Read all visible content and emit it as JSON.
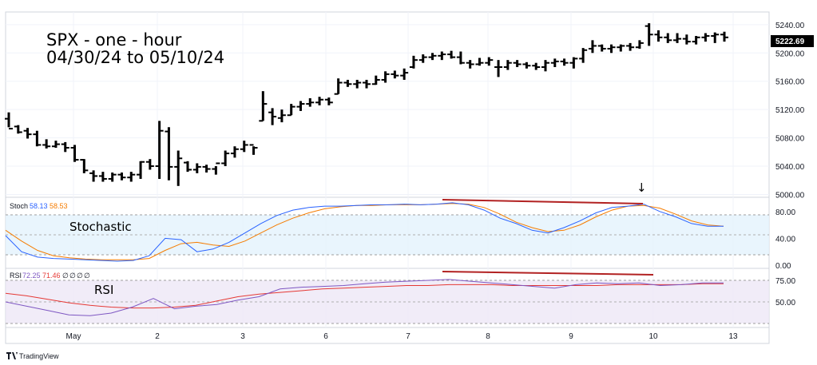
{
  "chart_data": {
    "type": "bar",
    "title_line1": "SPX - one - hour",
    "title_line2": "04/30/24 to 05/10/24",
    "last_price": "5222.69",
    "brand": "TradingView",
    "price_axis": {
      "min": 4996,
      "max": 5250,
      "ticks": [
        "5240.00",
        "5200.00",
        "5160.00",
        "5120.00",
        "5080.00",
        "5040.00",
        "5000.00"
      ]
    },
    "x_labels": [
      "May",
      "2",
      "3",
      "6",
      "7",
      "8",
      "9",
      "10",
      "13"
    ],
    "price_bars": [
      [
        5116,
        5095,
        5107,
        5093
      ],
      [
        5098,
        5086,
        5096,
        5088
      ],
      [
        5094,
        5079,
        5090,
        5085
      ],
      [
        5090,
        5068,
        5085,
        5070
      ],
      [
        5078,
        5065,
        5070,
        5068
      ],
      [
        5076,
        5066,
        5068,
        5071
      ],
      [
        5074,
        5060,
        5071,
        5066
      ],
      [
        5070,
        5046,
        5066,
        5049
      ],
      [
        5050,
        5030,
        5049,
        5034
      ],
      [
        5034,
        5018,
        5030,
        5026
      ],
      [
        5032,
        5018,
        5026,
        5022
      ],
      [
        5031,
        5018,
        5022,
        5028
      ],
      [
        5031,
        5020,
        5028,
        5024
      ],
      [
        5032,
        5018,
        5024,
        5028
      ],
      [
        5047,
        5022,
        5028,
        5046
      ],
      [
        5050,
        5035,
        5046,
        5040
      ],
      [
        5104,
        5022,
        5040,
        5090
      ],
      [
        5095,
        5020,
        5089,
        5039
      ],
      [
        5062,
        5012,
        5039,
        5051
      ],
      [
        5047,
        5032,
        5045,
        5035
      ],
      [
        5044,
        5030,
        5035,
        5039
      ],
      [
        5042,
        5031,
        5039,
        5036
      ],
      [
        5040,
        5028,
        5036,
        5044
      ],
      [
        5062,
        5040,
        5044,
        5058
      ],
      [
        5068,
        5052,
        5058,
        5064
      ],
      [
        5076,
        5060,
        5064,
        5070
      ],
      [
        5068,
        5056,
        5070,
        5066
      ],
      [
        5146,
        5104,
        5104,
        5128
      ],
      [
        5122,
        5098,
        5116,
        5110
      ],
      [
        5120,
        5102,
        5108,
        5112
      ],
      [
        5128,
        5112,
        5112,
        5124
      ],
      [
        5132,
        5118,
        5124,
        5128
      ],
      [
        5136,
        5124,
        5128,
        5130
      ],
      [
        5138,
        5126,
        5130,
        5134
      ],
      [
        5137,
        5126,
        5134,
        5130
      ],
      [
        5164,
        5142,
        5142,
        5158
      ],
      [
        5162,
        5152,
        5158,
        5156
      ],
      [
        5162,
        5150,
        5156,
        5158
      ],
      [
        5162,
        5150,
        5158,
        5156
      ],
      [
        5168,
        5155,
        5156,
        5162
      ],
      [
        5174,
        5158,
        5162,
        5170
      ],
      [
        5175,
        5164,
        5170,
        5168
      ],
      [
        5178,
        5162,
        5168,
        5172
      ],
      [
        5196,
        5178,
        5180,
        5190
      ],
      [
        5198,
        5186,
        5190,
        5194
      ],
      [
        5200,
        5190,
        5194,
        5196
      ],
      [
        5202,
        5190,
        5196,
        5198
      ],
      [
        5203,
        5192,
        5198,
        5194
      ],
      [
        5202,
        5184,
        5194,
        5186
      ],
      [
        5190,
        5178,
        5186,
        5184
      ],
      [
        5193,
        5182,
        5184,
        5186
      ],
      [
        5194,
        5182,
        5186,
        5190
      ],
      [
        5190,
        5166,
        5180,
        5180
      ],
      [
        5190,
        5176,
        5180,
        5186
      ],
      [
        5190,
        5180,
        5186,
        5184
      ],
      [
        5187,
        5178,
        5184,
        5182
      ],
      [
        5186,
        5176,
        5182,
        5180
      ],
      [
        5190,
        5174,
        5180,
        5186
      ],
      [
        5192,
        5180,
        5186,
        5188
      ],
      [
        5192,
        5182,
        5188,
        5186
      ],
      [
        5194,
        5178,
        5186,
        5192
      ],
      [
        5207,
        5186,
        5192,
        5204
      ],
      [
        5218,
        5200,
        5206,
        5210
      ],
      [
        5212,
        5202,
        5210,
        5206
      ],
      [
        5212,
        5200,
        5206,
        5208
      ],
      [
        5212,
        5202,
        5208,
        5210
      ],
      [
        5214,
        5203,
        5210,
        5208
      ],
      [
        5218,
        5206,
        5208,
        5214
      ],
      [
        5242,
        5210,
        5238,
        5226
      ],
      [
        5232,
        5216,
        5226,
        5222
      ],
      [
        5228,
        5214,
        5222,
        5218
      ],
      [
        5228,
        5214,
        5218,
        5220
      ],
      [
        5226,
        5212,
        5220,
        5216
      ],
      [
        5224,
        5212,
        5216,
        5222
      ],
      [
        5228,
        5216,
        5222,
        5224
      ],
      [
        5229,
        5214,
        5224,
        5226
      ],
      [
        5230,
        5216,
        5226,
        5222
      ]
    ],
    "stochastic": {
      "label": "Stoch",
      "k_value": "58.13",
      "d_value": "58.53",
      "ticks": [
        "80.00",
        "40.00",
        "0.00"
      ],
      "k_line": [
        44,
        20,
        12,
        10,
        9,
        8,
        7,
        6,
        7,
        14,
        40,
        38,
        20,
        24,
        34,
        48,
        62,
        74,
        82,
        86,
        88,
        88,
        89,
        90,
        90,
        91,
        90,
        91,
        93,
        90,
        82,
        70,
        62,
        52,
        48,
        56,
        66,
        78,
        86,
        88,
        91,
        80,
        72,
        62,
        58,
        58
      ],
      "d_line": [
        52,
        36,
        22,
        14,
        11,
        9,
        8,
        8,
        8,
        10,
        22,
        32,
        34,
        30,
        28,
        36,
        48,
        60,
        70,
        78,
        84,
        87,
        89,
        89,
        90,
        90,
        90,
        91,
        92,
        91,
        86,
        76,
        64,
        56,
        50,
        52,
        60,
        72,
        82,
        88,
        89,
        85,
        76,
        66,
        60,
        58
      ]
    },
    "rsi": {
      "label": "RSI",
      "rsi_value": "72.25",
      "ma_value": "71.46",
      "extra_values": [
        "∅",
        "∅",
        "∅",
        "∅"
      ],
      "ticks": [
        "75.00",
        "50.00"
      ],
      "rsi_line": [
        50,
        45,
        40,
        35,
        34,
        37,
        44,
        54,
        42,
        45,
        47,
        52,
        56,
        65,
        67,
        68,
        69,
        71,
        73,
        74,
        75,
        76,
        74,
        72,
        70,
        68,
        66,
        70,
        72,
        71,
        72,
        69,
        70,
        72,
        72
      ],
      "ma_line": [
        60,
        57,
        53,
        49,
        46,
        44,
        43,
        43,
        44,
        46,
        51,
        56,
        59,
        61,
        63,
        65,
        66,
        67,
        68,
        69,
        69,
        70,
        70,
        70,
        69,
        69,
        69,
        69,
        69,
        70,
        70,
        70,
        70,
        71,
        71
      ]
    },
    "annotations": [
      "Stochastic",
      "RSI",
      "↓"
    ]
  }
}
